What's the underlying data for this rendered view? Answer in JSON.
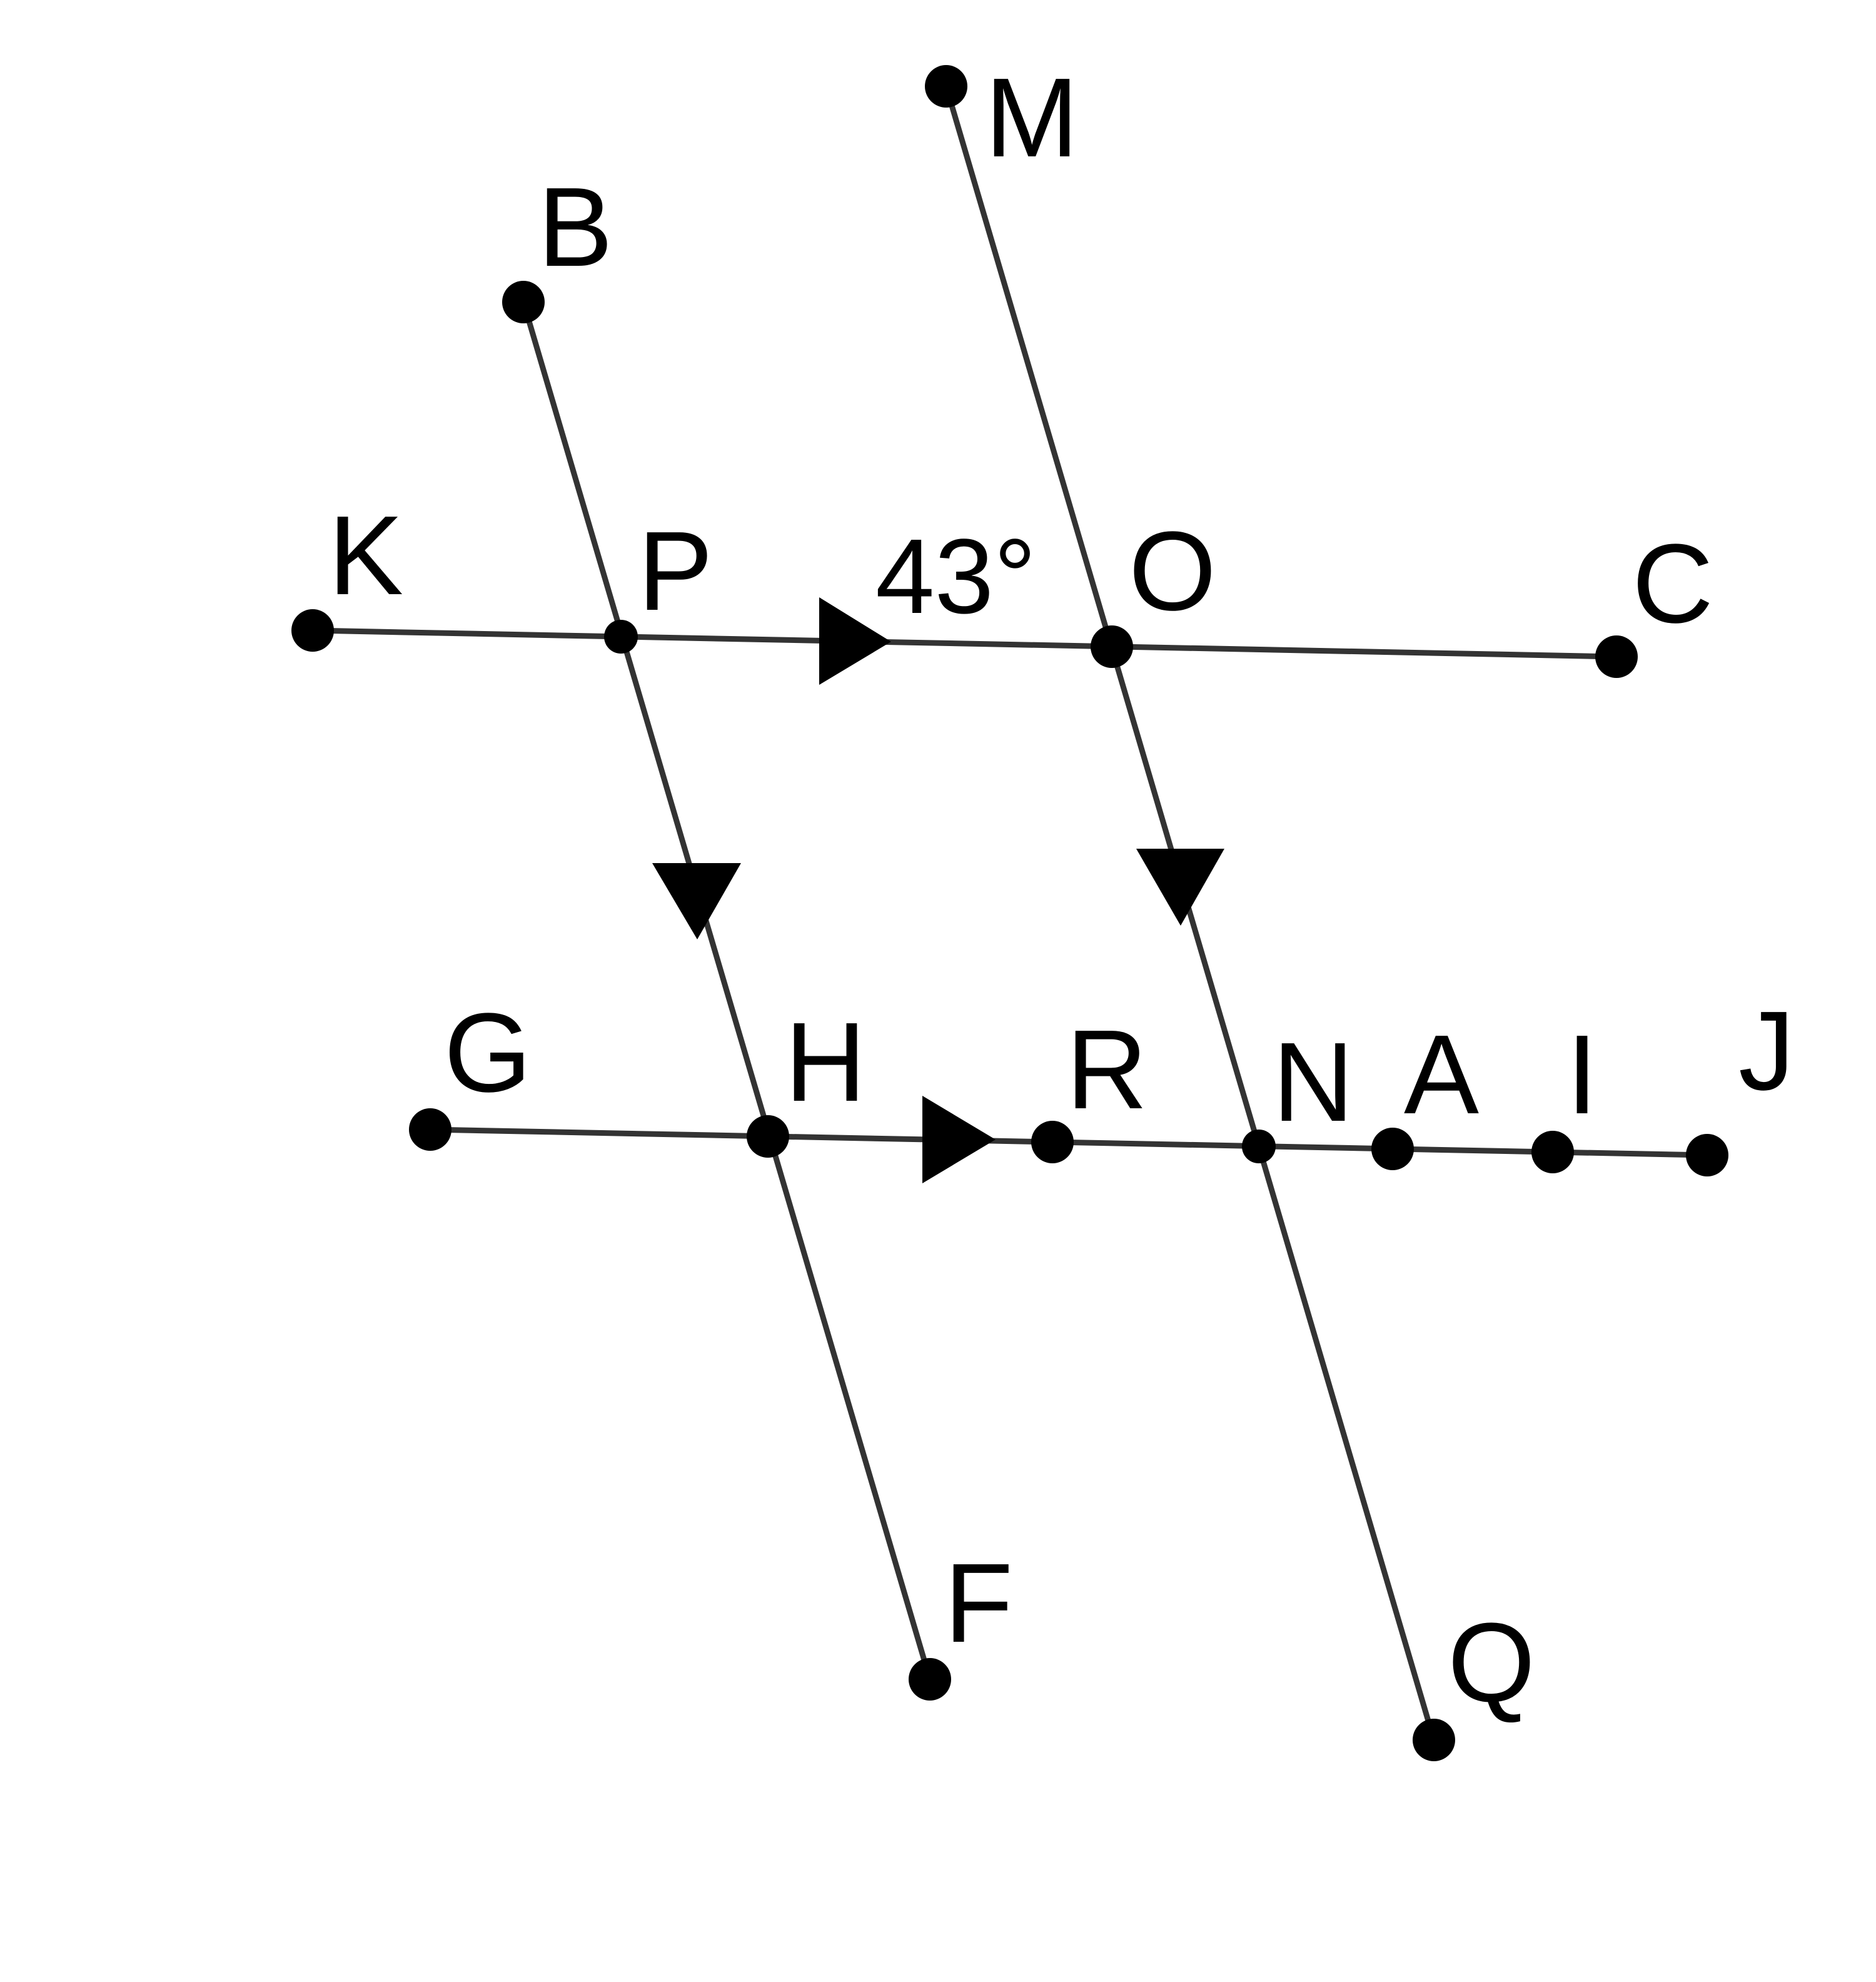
{
  "diagram": {
    "labels": {
      "M": "M",
      "B": "B",
      "K": "K",
      "P": "P",
      "O": "O",
      "C": "C",
      "G": "G",
      "H": "H",
      "R": "R",
      "N": "N",
      "A": "A",
      "I": "I",
      "J": "J",
      "F": "F",
      "Q": "Q"
    },
    "angle_label": "43°",
    "colors": {
      "line": "#333333",
      "point": "#000000"
    }
  }
}
